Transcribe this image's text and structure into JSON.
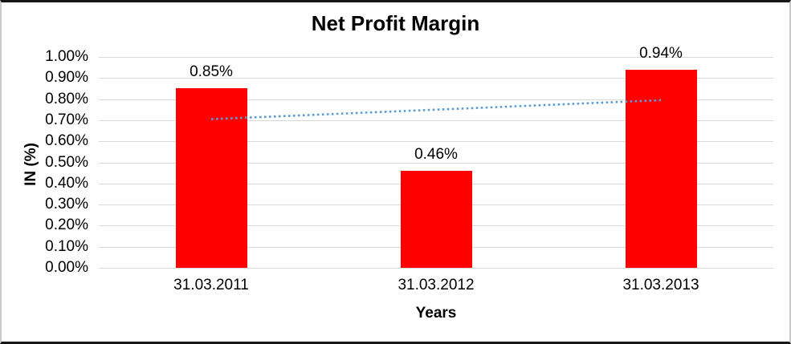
{
  "chart_data": {
    "type": "bar",
    "title": "Net Profit Margin",
    "xlabel": "Years",
    "ylabel": "IN (%)",
    "categories": [
      "31.03.2011",
      "31.03.2012",
      "31.03.2013"
    ],
    "values": [
      0.85,
      0.46,
      0.94
    ],
    "data_labels": [
      "0.85%",
      "0.46%",
      "0.94%"
    ],
    "yticks": [
      "1.00%",
      "0.90%",
      "0.80%",
      "0.70%",
      "0.60%",
      "0.50%",
      "0.40%",
      "0.30%",
      "0.20%",
      "0.10%",
      "0.00%"
    ],
    "ylim": [
      0,
      1.0
    ],
    "grid": true,
    "legend": "none",
    "bar_color": "#FF0000",
    "grid_color": "#D9D9D9",
    "trendline": {
      "type": "linear",
      "style": "dotted",
      "color": "#5B9BD5",
      "start_value": 0.705,
      "end_value": 0.795
    }
  }
}
